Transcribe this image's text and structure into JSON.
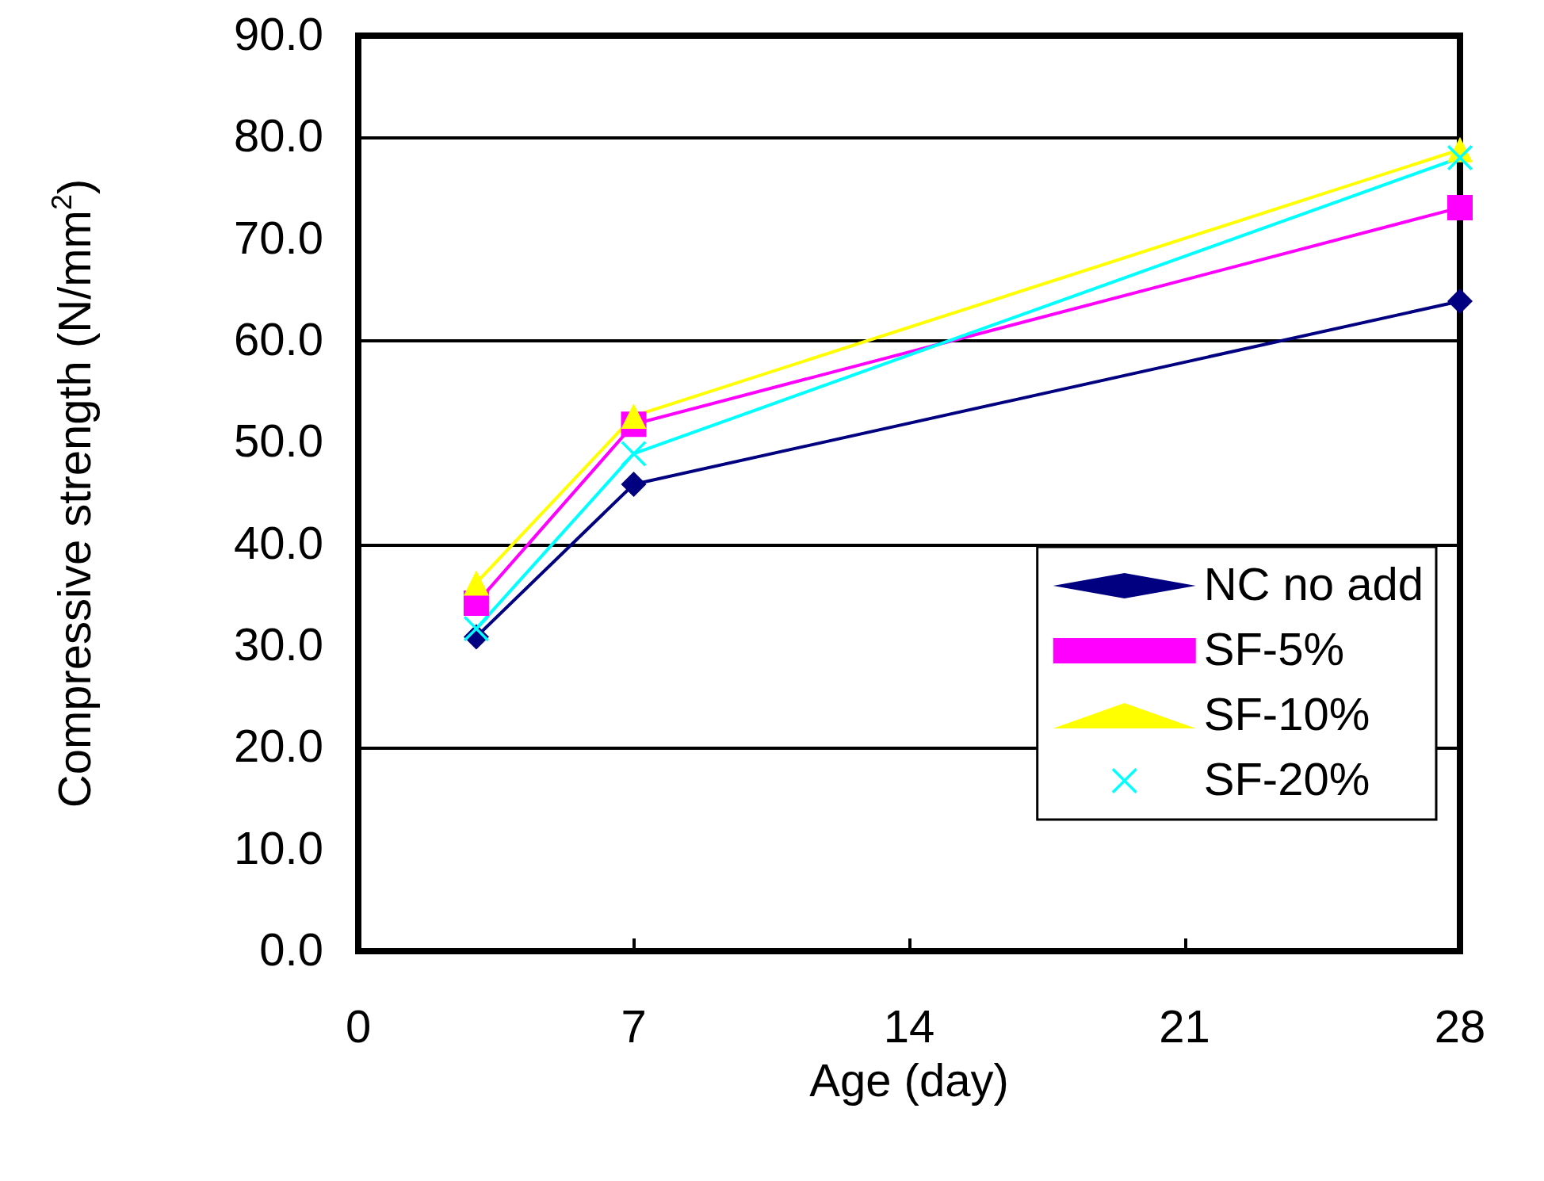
{
  "chart_data": {
    "type": "line",
    "xlabel": "Age (day)",
    "ylabel": "Compressive strength (N/mm$^{2}$)",
    "x": [
      3,
      7,
      28
    ],
    "series": [
      {
        "name": "NC no add",
        "color": "#000080",
        "marker": "diamond",
        "values": [
          30.9,
          45.9,
          63.9
        ]
      },
      {
        "name": "SF-5%",
        "color": "#ff00ff",
        "marker": "square",
        "values": [
          34.2,
          51.8,
          73.1
        ]
      },
      {
        "name": "SF-10%",
        "color": "#ffff00",
        "marker": "triangle",
        "values": [
          36.2,
          52.6,
          78.8
        ]
      },
      {
        "name": "SF-20%",
        "color": "#00ffff",
        "marker": "cross",
        "values": [
          31.7,
          48.9,
          78.0
        ]
      }
    ],
    "xlim": [
      0,
      28
    ],
    "xticks": [
      0,
      7,
      14,
      21,
      28
    ],
    "ylim": [
      0,
      90
    ],
    "yticks": [
      {
        "value": 0,
        "label": "0.0"
      },
      {
        "value": 10,
        "label": "10.0"
      },
      {
        "value": 20,
        "label": "20.0"
      },
      {
        "value": 30,
        "label": "30.0"
      },
      {
        "value": 40,
        "label": "40.0"
      },
      {
        "value": 50,
        "label": "50.0"
      },
      {
        "value": 60,
        "label": "60.0"
      },
      {
        "value": 70,
        "label": "70.0"
      },
      {
        "value": 80,
        "label": "80.0"
      },
      {
        "value": 90,
        "label": "90.0"
      }
    ],
    "grid": "y",
    "legend": "bottom right",
    "line_style": "solid"
  }
}
